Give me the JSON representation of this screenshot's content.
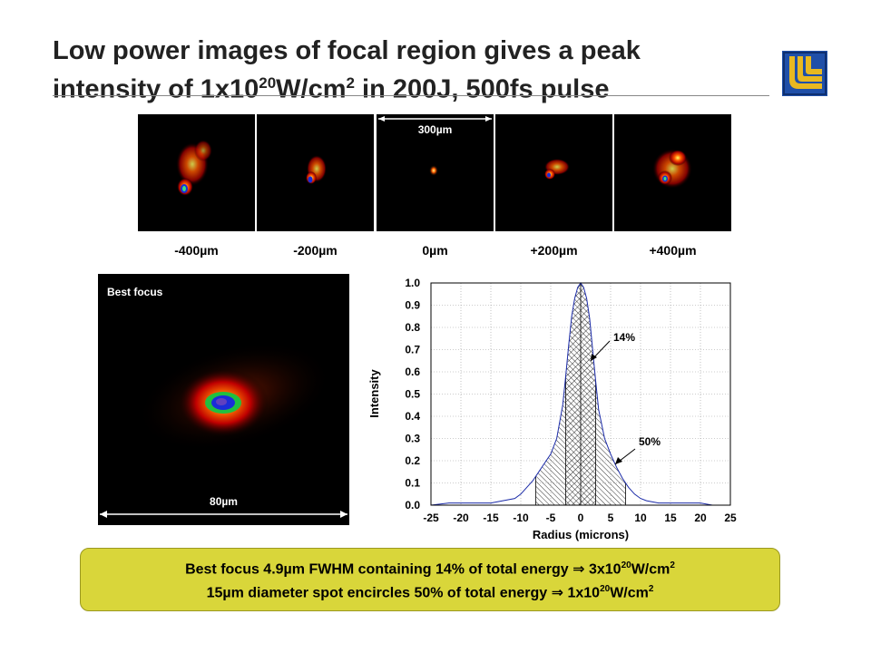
{
  "title": {
    "line1": "Low power images of focal region gives a peak",
    "line2_prefix": "intensity of 1x10",
    "line2_exp": "20",
    "line2_mid": "W/cm",
    "line2_exp2": "2",
    "line2_suffix": " in 200J, 500fs pulse"
  },
  "logo": {
    "icon": "llnl-logo-icon",
    "colors": [
      "#1f4fa8",
      "#e8b820"
    ]
  },
  "strip": {
    "labels": [
      "-400µm",
      "-200µm",
      "0µm",
      "+200µm",
      "+400µm"
    ],
    "scale_label": "300µm"
  },
  "best_focus": {
    "label": "Best focus",
    "scale_label": "80µm"
  },
  "chart_data": {
    "type": "line",
    "ylabel": "Intensity",
    "xlabel": "Radius (microns)",
    "xlim": [
      -25,
      25
    ],
    "ylim": [
      0,
      1.0
    ],
    "x_ticks": [
      "-25",
      "-20",
      "-15",
      "-10",
      "-5",
      "0",
      "5",
      "10",
      "15",
      "20",
      "25"
    ],
    "y_ticks": [
      "0.0",
      "0.1",
      "0.2",
      "0.3",
      "0.4",
      "0.5",
      "0.6",
      "0.7",
      "0.8",
      "0.9",
      "1.0"
    ],
    "grid": true,
    "series": [
      {
        "x": [
          -25,
          -22,
          -20,
          -17,
          -15,
          -13,
          -11,
          -10,
          -9,
          -8,
          -7,
          -6,
          -5,
          -4,
          -3,
          -2.5,
          -2,
          -1.5,
          -1,
          -0.5,
          0,
          0.5,
          1,
          1.5,
          2,
          2.5,
          3,
          4,
          5,
          6,
          7,
          8,
          9,
          10,
          11,
          13,
          15,
          17,
          20,
          22,
          25
        ],
        "y": [
          0.0,
          0.01,
          0.01,
          0.01,
          0.01,
          0.02,
          0.03,
          0.05,
          0.08,
          0.11,
          0.15,
          0.19,
          0.23,
          0.3,
          0.45,
          0.58,
          0.72,
          0.85,
          0.93,
          0.98,
          1.0,
          0.98,
          0.93,
          0.84,
          0.7,
          0.56,
          0.43,
          0.3,
          0.23,
          0.17,
          0.12,
          0.08,
          0.05,
          0.03,
          0.02,
          0.01,
          0.01,
          0.01,
          0.01,
          0.0,
          0.0
        ]
      }
    ],
    "annotations": [
      {
        "text": "14%",
        "shaded_x_range": [
          -2.5,
          2.5
        ]
      },
      {
        "text": "50%",
        "shaded_x_range": [
          -7.5,
          7.5
        ]
      }
    ]
  },
  "summary": {
    "line1_prefix": "Best focus 4.9µm FWHM containing 14% of total energy ",
    "line1_arrow": "⇒",
    "line1_value": " 3x10",
    "line1_exp": "20",
    "line1_unit": "W/cm",
    "line1_exp2": "2",
    "line2_prefix": "15µm diameter spot encircles 50% of total energy ",
    "line2_arrow": "⇒",
    "line2_value": " 1x10",
    "line2_exp": "20",
    "line2_unit": "W/cm",
    "line2_exp2": "2"
  }
}
